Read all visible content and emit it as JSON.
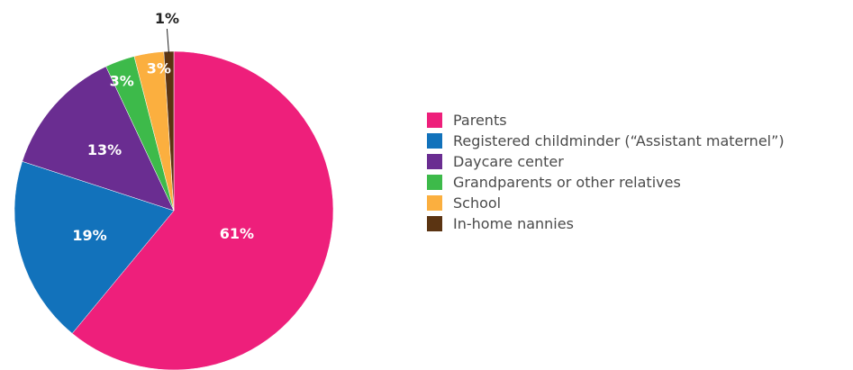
{
  "chart_data": {
    "type": "pie",
    "title": "",
    "start_angle_deg": 0,
    "direction": "clockwise",
    "legend_position": "right",
    "slices": [
      {
        "label": "Parents",
        "value": 61,
        "display": "61%",
        "color": "#ee1f7b",
        "label_color": "#ffffff"
      },
      {
        "label": "Registered childminder (“Assistant maternel”)",
        "value": 19,
        "display": "19%",
        "color": "#1272bb",
        "label_color": "#ffffff"
      },
      {
        "label": "Daycare center",
        "value": 13,
        "display": "13%",
        "color": "#6a2d91",
        "label_color": "#ffffff"
      },
      {
        "label": "Grandparents or other relatives",
        "value": 3,
        "display": "3%",
        "color": "#3dba4a",
        "label_color": "#ffffff"
      },
      {
        "label": "School",
        "value": 3,
        "display": "3%",
        "color": "#fbaf3f",
        "label_color": "#ffffff"
      },
      {
        "label": "In-home nannies",
        "value": 1,
        "display": "1%",
        "color": "#5b3412",
        "label_color": "#222222"
      }
    ]
  }
}
